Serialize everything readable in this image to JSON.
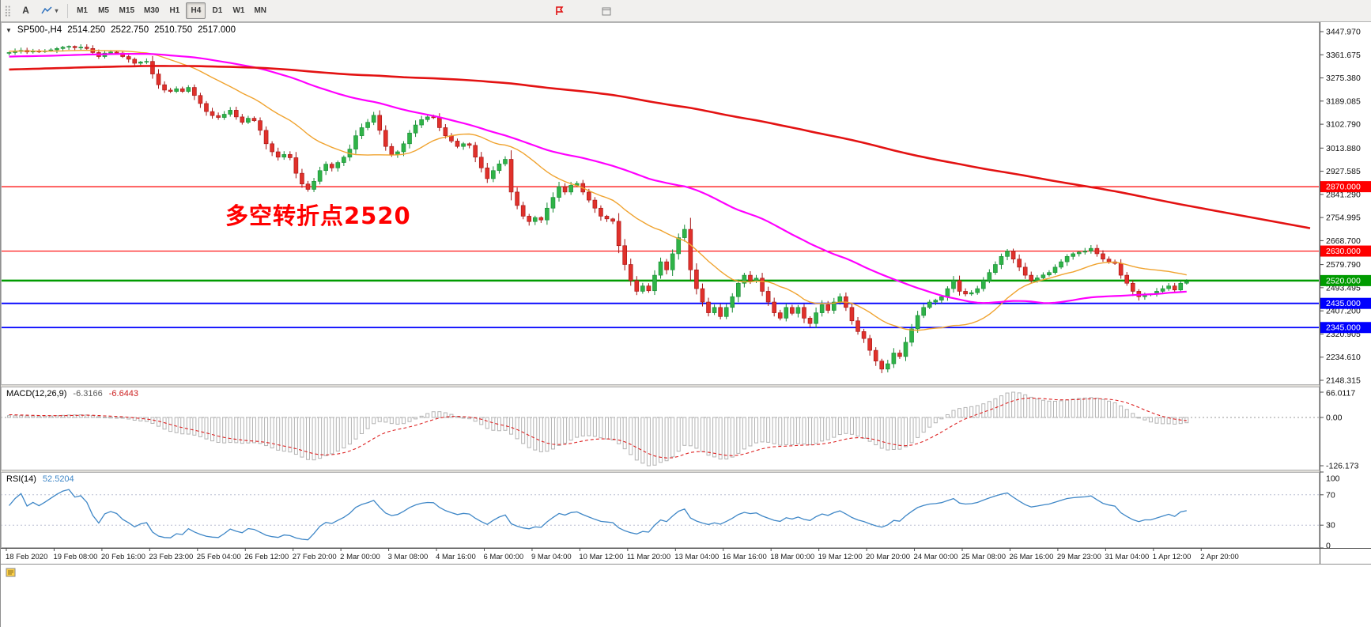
{
  "toolbar": {
    "tool_a_label": "A",
    "timeframes": [
      {
        "label": "M1",
        "active": false
      },
      {
        "label": "M5",
        "active": false
      },
      {
        "label": "M15",
        "active": false
      },
      {
        "label": "M30",
        "active": false
      },
      {
        "label": "H1",
        "active": false
      },
      {
        "label": "H4",
        "active": true
      },
      {
        "label": "D1",
        "active": false
      },
      {
        "label": "W1",
        "active": false
      },
      {
        "label": "MN",
        "active": false
      }
    ]
  },
  "chart": {
    "title": {
      "symbol_period": "SP500-,H4",
      "open": "2514.250",
      "high": "2522.750",
      "low": "2510.750",
      "close": "2517.000"
    },
    "annotation": {
      "text": "多空转折点2520",
      "color": "#ff0000"
    }
  },
  "indicators": {
    "macd": {
      "label": "MACD(12,26,9)",
      "value_main": "-6.3166",
      "value_signal": "-6.6443"
    },
    "rsi": {
      "label": "RSI(14)",
      "value": "52.5204"
    }
  },
  "chart_data": {
    "type": "candlestick",
    "symbol": "SP500-",
    "timeframe": "H4",
    "price_axis": {
      "view_max": 3483.3,
      "view_min": 2130.6,
      "labels": [
        3447.97,
        3361.675,
        3275.38,
        3189.085,
        3102.79,
        3013.88,
        2927.585,
        2841.29,
        2754.995,
        2668.7,
        2579.79,
        2493.495,
        2407.2,
        2320.905,
        2234.61,
        2148.315
      ]
    },
    "h_lines": [
      {
        "value": 2870.0,
        "color": "#fe0000",
        "width": 1.2
      },
      {
        "value": 2630.0,
        "color": "#fe0000",
        "width": 1.2
      },
      {
        "value": 2520.0,
        "color": "#009b00",
        "width": 2.4
      },
      {
        "value": 2435.0,
        "color": "#0000fe",
        "width": 1.8
      },
      {
        "value": 2345.0,
        "color": "#0000fe",
        "width": 1.8
      }
    ],
    "time_labels": [
      "18 Feb 2020",
      "19 Feb 08:00",
      "20 Feb 16:00",
      "23 Feb 23:00",
      "25 Feb 04:00",
      "26 Feb 12:00",
      "27 Feb 20:00",
      "2 Mar 00:00",
      "3 Mar 08:00",
      "4 Mar 16:00",
      "6 Mar 00:00",
      "9 Mar 04:00",
      "10 Mar 12:00",
      "11 Mar 20:00",
      "13 Mar 04:00",
      "16 Mar 16:00",
      "18 Mar 00:00",
      "19 Mar 12:00",
      "20 Mar 20:00",
      "24 Mar 00:00",
      "25 Mar 08:00",
      "26 Mar 16:00",
      "29 Mar 23:00",
      "31 Mar 04:00",
      "1 Apr 12:00",
      "2 Apr 20:00"
    ],
    "candles": {
      "first_open": 3368,
      "closes": [
        3370,
        3374,
        3378,
        3372,
        3375,
        3373,
        3376,
        3380,
        3385,
        3390,
        3393,
        3388,
        3390,
        3385,
        3370,
        3355,
        3368,
        3372,
        3368,
        3355,
        3345,
        3330,
        3335,
        3337,
        3290,
        3250,
        3230,
        3225,
        3235,
        3225,
        3240,
        3210,
        3180,
        3150,
        3135,
        3128,
        3140,
        3155,
        3130,
        3110,
        3125,
        3116,
        3080,
        3030,
        3000,
        2980,
        2990,
        2978,
        2920,
        2880,
        2860,
        2890,
        2930,
        2954,
        2940,
        2960,
        2980,
        3010,
        3060,
        3090,
        3110,
        3136,
        3080,
        3020,
        2990,
        3000,
        3030,
        3070,
        3100,
        3120,
        3130,
        3128,
        3090,
        3060,
        3040,
        3020,
        3030,
        3024,
        2980,
        2940,
        2900,
        2930,
        2955,
        2972,
        2850,
        2800,
        2760,
        2740,
        2755,
        2746,
        2790,
        2830,
        2870,
        2850,
        2875,
        2882,
        2850,
        2820,
        2790,
        2760,
        2750,
        2741,
        2650,
        2580,
        2520,
        2480,
        2500,
        2482,
        2540,
        2590,
        2560,
        2620,
        2680,
        2711,
        2560,
        2490,
        2440,
        2400,
        2420,
        2386,
        2420,
        2460,
        2510,
        2540,
        2520,
        2529,
        2480,
        2440,
        2400,
        2380,
        2420,
        2398,
        2420,
        2380,
        2360,
        2400,
        2430,
        2409,
        2440,
        2460,
        2420,
        2370,
        2330,
        2304,
        2260,
        2220,
        2190,
        2210,
        2250,
        2237,
        2290,
        2340,
        2390,
        2420,
        2440,
        2447,
        2460,
        2490,
        2520,
        2480,
        2470,
        2475,
        2490,
        2520,
        2550,
        2580,
        2610,
        2630,
        2600,
        2570,
        2540,
        2520,
        2530,
        2541,
        2550,
        2570,
        2590,
        2610,
        2620,
        2626,
        2630,
        2640,
        2620,
        2600,
        2590,
        2584,
        2540,
        2510,
        2480,
        2460,
        2470,
        2470,
        2480,
        2490,
        2500,
        2485,
        2510,
        2517
      ]
    },
    "pre_history": {
      "bars": 200,
      "from": 3238,
      "to": 3372,
      "wave": 14
    },
    "moving_averages": [
      {
        "name": "fast",
        "period": 20,
        "color": "#f0a32f",
        "width": 1.4,
        "extend": false
      },
      {
        "name": "medium",
        "period": 60,
        "color": "#ff00ff",
        "width": 2.2,
        "extend": false
      },
      {
        "name": "slow",
        "period": 200,
        "color": "#e31212",
        "width": 2.6,
        "extend": true
      }
    ],
    "macd_panel": {
      "fast": 12,
      "slow": 26,
      "signal_period": 9,
      "view_max": 80.5,
      "view_min": -138.5,
      "norm_max": 66.0117,
      "norm_min": -126.173,
      "axis_labels": [
        {
          "value": 66.0117,
          "label": "66.0117"
        },
        {
          "value": 0,
          "label": "0.00"
        },
        {
          "value": -126.173,
          "label": "-126.173"
        }
      ]
    },
    "rsi_panel": {
      "period": 14,
      "levels": [
        70,
        30
      ],
      "axis_labels": [
        {
          "value": 100,
          "label": "100"
        },
        {
          "value": 70,
          "label": "70"
        },
        {
          "value": 30,
          "label": "30"
        },
        {
          "value": 0,
          "label": "0"
        }
      ]
    },
    "colors": {
      "candle_up": "#2fb347",
      "candle_up_border": "#158a33",
      "candle_down": "#e0312b",
      "candle_down_border": "#a31212",
      "macd_hist": "#b3b3b3",
      "macd_signal": "#dd2222",
      "rsi_line": "#3f87c7"
    }
  }
}
